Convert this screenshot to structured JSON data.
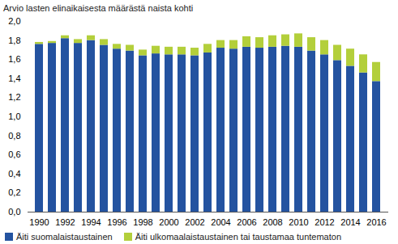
{
  "chart_data": {
    "type": "bar",
    "title": "Arvio  lasten elinaikaisesta määrästä naista kohti",
    "stacked": true,
    "grid": false,
    "legend": "bottom",
    "categories": [
      "1990",
      null,
      "1992",
      null,
      "1994",
      null,
      "1996",
      null,
      "1998",
      null,
      "2000",
      null,
      "2002",
      null,
      "2004",
      null,
      "2006",
      null,
      "2008",
      null,
      "2010",
      null,
      "2012",
      null,
      "2014",
      null,
      "2016"
    ],
    "series": [
      {
        "name": "Äiti suomalaistaustainen",
        "color": "#2453a0",
        "values": [
          1.76,
          1.77,
          1.82,
          1.77,
          1.8,
          1.75,
          1.71,
          1.69,
          1.64,
          1.66,
          1.65,
          1.65,
          1.64,
          1.67,
          1.72,
          1.71,
          1.73,
          1.72,
          1.73,
          1.74,
          1.73,
          1.69,
          1.65,
          1.59,
          1.53,
          1.46,
          1.37
        ]
      },
      {
        "name": "Äiti ulkomaalaistaustainen tai taustamaa tuntematon",
        "color": "#b3cf3b",
        "values": [
          0.02,
          0.02,
          0.03,
          0.04,
          0.05,
          0.06,
          0.05,
          0.06,
          0.06,
          0.08,
          0.08,
          0.08,
          0.08,
          0.09,
          0.08,
          0.09,
          0.11,
          0.11,
          0.12,
          0.12,
          0.14,
          0.14,
          0.15,
          0.16,
          0.18,
          0.19,
          0.2
        ]
      }
    ],
    "ylim": [
      0,
      2
    ],
    "yticks": [
      {
        "value": 0,
        "label": "0,0"
      },
      {
        "value": 0.2,
        "label": "0,2"
      },
      {
        "value": 0.4,
        "label": "0,4"
      },
      {
        "value": 0.6,
        "label": "0,6"
      },
      {
        "value": 0.8,
        "label": "0,8"
      },
      {
        "value": 1,
        "label": "1,0"
      },
      {
        "value": 1.2,
        "label": "1,2"
      },
      {
        "value": 1.4,
        "label": "1,4"
      },
      {
        "value": 1.6,
        "label": "1,6"
      },
      {
        "value": 1.8,
        "label": "1,8"
      },
      {
        "value": 2,
        "label": "2,0"
      }
    ]
  }
}
